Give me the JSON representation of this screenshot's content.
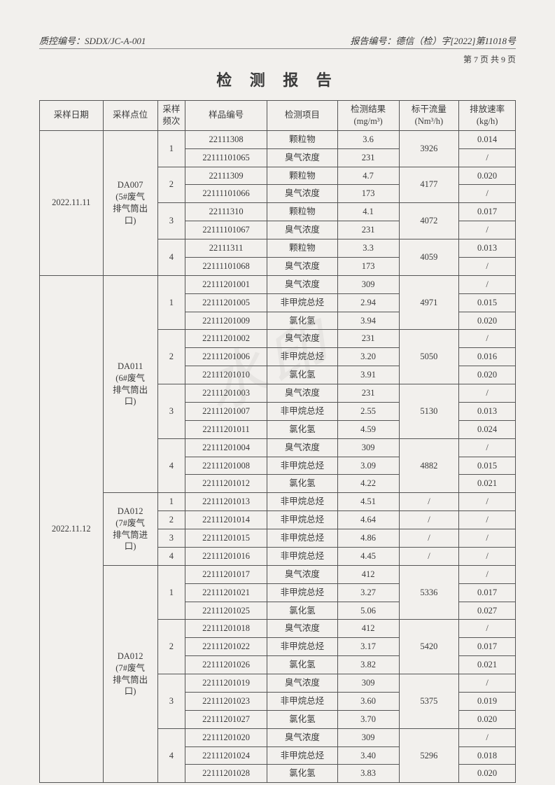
{
  "header": {
    "qc_no_label": "质控编号：",
    "qc_no": "SDDX/JC-A-001",
    "report_no_label": "报告编号：",
    "report_no": "德信（检）字[2022]第11018号",
    "pager": "第 7 页 共 9 页",
    "title": "检 测 报 告"
  },
  "columns": {
    "c1": "采样日期",
    "c2": "采样点位",
    "c3": "采样频次",
    "c4": "样品编号",
    "c5": "检测项目",
    "c6_a": "检测结果",
    "c6_b": "(mg/m³)",
    "c7_a": "标干流量",
    "c7_b": "(Nm³/h)",
    "c8_a": "排放速率",
    "c8_b": "(kg/h)"
  },
  "groups": [
    {
      "date": "2022.11.11",
      "locs": [
        {
          "loc": "DA007\n(5#废气\n排气筒出\n口)",
          "freqs": [
            {
              "n": "1",
              "flow": "3926",
              "rows": [
                {
                  "s": "22111308",
                  "i": "颗粒物",
                  "r": "3.6",
                  "e": "0.014"
                },
                {
                  "s": "22111101065",
                  "i": "臭气浓度",
                  "r": "231",
                  "e": "/"
                }
              ]
            },
            {
              "n": "2",
              "flow": "4177",
              "rows": [
                {
                  "s": "22111309",
                  "i": "颗粒物",
                  "r": "4.7",
                  "e": "0.020"
                },
                {
                  "s": "22111101066",
                  "i": "臭气浓度",
                  "r": "173",
                  "e": "/"
                }
              ]
            },
            {
              "n": "3",
              "flow": "4072",
              "rows": [
                {
                  "s": "22111310",
                  "i": "颗粒物",
                  "r": "4.1",
                  "e": "0.017"
                },
                {
                  "s": "22111101067",
                  "i": "臭气浓度",
                  "r": "231",
                  "e": "/"
                }
              ]
            },
            {
              "n": "4",
              "flow": "4059",
              "rows": [
                {
                  "s": "22111311",
                  "i": "颗粒物",
                  "r": "3.3",
                  "e": "0.013"
                },
                {
                  "s": "22111101068",
                  "i": "臭气浓度",
                  "r": "173",
                  "e": "/"
                }
              ]
            }
          ]
        }
      ]
    },
    {
      "date": "2022.11.12",
      "locs": [
        {
          "loc": "DA011\n(6#废气\n排气筒出\n口)",
          "freqs": [
            {
              "n": "1",
              "flow": "4971",
              "rows": [
                {
                  "s": "22111201001",
                  "i": "臭气浓度",
                  "r": "309",
                  "e": "/"
                },
                {
                  "s": "22111201005",
                  "i": "非甲烷总烃",
                  "r": "2.94",
                  "e": "0.015"
                },
                {
                  "s": "22111201009",
                  "i": "氯化氢",
                  "r": "3.94",
                  "e": "0.020"
                }
              ]
            },
            {
              "n": "2",
              "flow": "5050",
              "rows": [
                {
                  "s": "22111201002",
                  "i": "臭气浓度",
                  "r": "231",
                  "e": "/"
                },
                {
                  "s": "22111201006",
                  "i": "非甲烷总烃",
                  "r": "3.20",
                  "e": "0.016"
                },
                {
                  "s": "22111201010",
                  "i": "氯化氢",
                  "r": "3.91",
                  "e": "0.020"
                }
              ]
            },
            {
              "n": "3",
              "flow": "5130",
              "rows": [
                {
                  "s": "22111201003",
                  "i": "臭气浓度",
                  "r": "231",
                  "e": "/"
                },
                {
                  "s": "22111201007",
                  "i": "非甲烷总烃",
                  "r": "2.55",
                  "e": "0.013"
                },
                {
                  "s": "22111201011",
                  "i": "氯化氢",
                  "r": "4.59",
                  "e": "0.024"
                }
              ]
            },
            {
              "n": "4",
              "flow": "4882",
              "rows": [
                {
                  "s": "22111201004",
                  "i": "臭气浓度",
                  "r": "309",
                  "e": "/"
                },
                {
                  "s": "22111201008",
                  "i": "非甲烷总烃",
                  "r": "3.09",
                  "e": "0.015"
                },
                {
                  "s": "22111201012",
                  "i": "氯化氢",
                  "r": "4.22",
                  "e": "0.021"
                }
              ]
            }
          ]
        },
        {
          "loc": "DA012\n(7#废气\n排气筒进\n口)",
          "freqs": [
            {
              "n": "1",
              "flow": "/",
              "rows": [
                {
                  "s": "22111201013",
                  "i": "非甲烷总烃",
                  "r": "4.51",
                  "e": "/"
                }
              ]
            },
            {
              "n": "2",
              "flow": "/",
              "rows": [
                {
                  "s": "22111201014",
                  "i": "非甲烷总烃",
                  "r": "4.64",
                  "e": "/"
                }
              ]
            },
            {
              "n": "3",
              "flow": "/",
              "rows": [
                {
                  "s": "22111201015",
                  "i": "非甲烷总烃",
                  "r": "4.86",
                  "e": "/"
                }
              ]
            },
            {
              "n": "4",
              "flow": "/",
              "rows": [
                {
                  "s": "22111201016",
                  "i": "非甲烷总烃",
                  "r": "4.45",
                  "e": "/"
                }
              ]
            }
          ]
        },
        {
          "loc": "DA012\n(7#废气\n排气筒出\n口)",
          "freqs": [
            {
              "n": "1",
              "flow": "5336",
              "rows": [
                {
                  "s": "22111201017",
                  "i": "臭气浓度",
                  "r": "412",
                  "e": "/"
                },
                {
                  "s": "22111201021",
                  "i": "非甲烷总烃",
                  "r": "3.27",
                  "e": "0.017"
                },
                {
                  "s": "22111201025",
                  "i": "氯化氢",
                  "r": "5.06",
                  "e": "0.027"
                }
              ]
            },
            {
              "n": "2",
              "flow": "5420",
              "rows": [
                {
                  "s": "22111201018",
                  "i": "臭气浓度",
                  "r": "412",
                  "e": "/"
                },
                {
                  "s": "22111201022",
                  "i": "非甲烷总烃",
                  "r": "3.17",
                  "e": "0.017"
                },
                {
                  "s": "22111201026",
                  "i": "氯化氢",
                  "r": "3.82",
                  "e": "0.021"
                }
              ]
            },
            {
              "n": "3",
              "flow": "5375",
              "rows": [
                {
                  "s": "22111201019",
                  "i": "臭气浓度",
                  "r": "309",
                  "e": "/"
                },
                {
                  "s": "22111201023",
                  "i": "非甲烷总烃",
                  "r": "3.60",
                  "e": "0.019"
                },
                {
                  "s": "22111201027",
                  "i": "氯化氢",
                  "r": "3.70",
                  "e": "0.020"
                }
              ]
            },
            {
              "n": "4",
              "flow": "5296",
              "rows": [
                {
                  "s": "22111201020",
                  "i": "臭气浓度",
                  "r": "309",
                  "e": "/"
                },
                {
                  "s": "22111201024",
                  "i": "非甲烷总烃",
                  "r": "3.40",
                  "e": "0.018"
                },
                {
                  "s": "22111201028",
                  "i": "氯化氢",
                  "r": "3.83",
                  "e": "0.020"
                }
              ]
            }
          ]
        }
      ]
    }
  ],
  "watermark": "水印"
}
